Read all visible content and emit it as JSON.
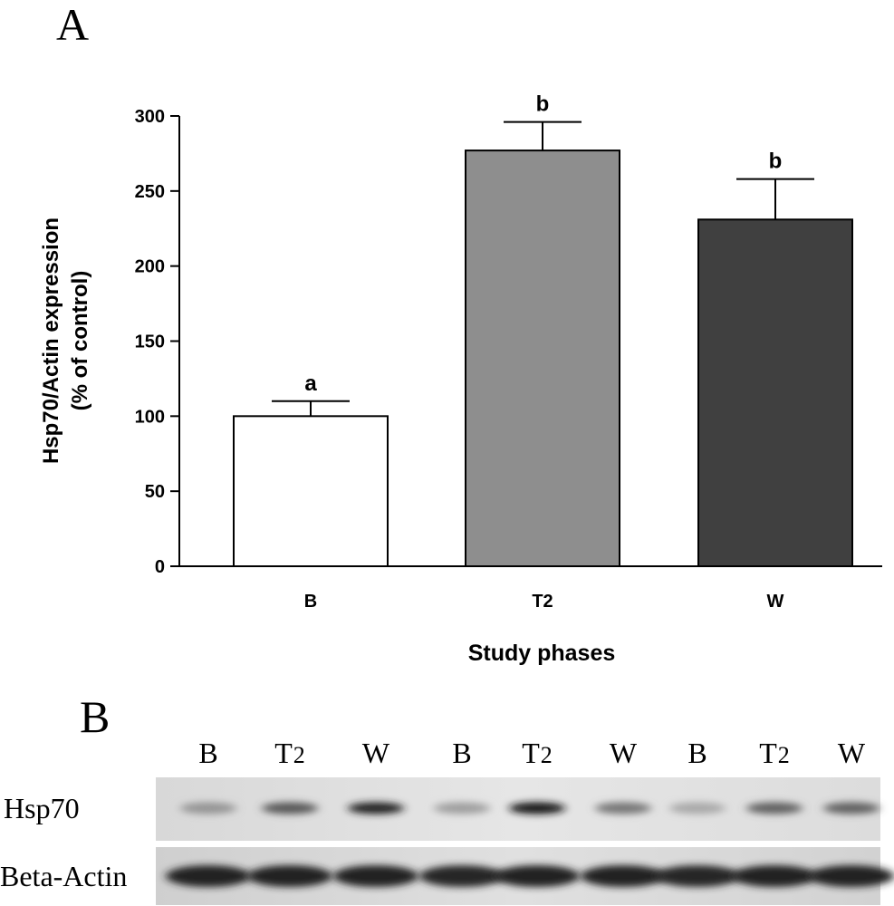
{
  "panel_a": {
    "label": "A",
    "chart_data": {
      "type": "bar",
      "categories": [
        "B",
        "T2",
        "W"
      ],
      "values": [
        100,
        277,
        231
      ],
      "errors": [
        10,
        19,
        27
      ],
      "significance": [
        "a",
        "b",
        "b"
      ],
      "bar_colors": [
        "#ffffff",
        "#8e8e8e",
        "#404040"
      ],
      "xlabel": "Study phases",
      "ylabel_line1": "Hsp70/Actin expression",
      "ylabel_line2": "(% of control)",
      "ylim": [
        0,
        300
      ],
      "yticks": [
        0,
        50,
        100,
        150,
        200,
        250,
        300
      ],
      "grid": false,
      "legend": "none"
    }
  },
  "panel_b": {
    "label": "B",
    "lanes": [
      {
        "label": "B",
        "sub": ""
      },
      {
        "label": "T",
        "sub": "2"
      },
      {
        "label": "W",
        "sub": ""
      },
      {
        "label": "B",
        "sub": ""
      },
      {
        "label": "T",
        "sub": "2"
      },
      {
        "label": "W",
        "sub": ""
      },
      {
        "label": "B",
        "sub": ""
      },
      {
        "label": "T",
        "sub": "2"
      },
      {
        "label": "W",
        "sub": ""
      }
    ],
    "rows": [
      {
        "label": "Hsp70",
        "band_intensity": [
          0.35,
          0.65,
          0.9,
          0.3,
          0.95,
          0.5,
          0.25,
          0.6,
          0.6
        ]
      },
      {
        "label": "Beta-Actin",
        "band_intensity": [
          0.9,
          0.9,
          0.9,
          0.88,
          0.9,
          0.9,
          0.88,
          0.9,
          0.9
        ]
      }
    ]
  }
}
